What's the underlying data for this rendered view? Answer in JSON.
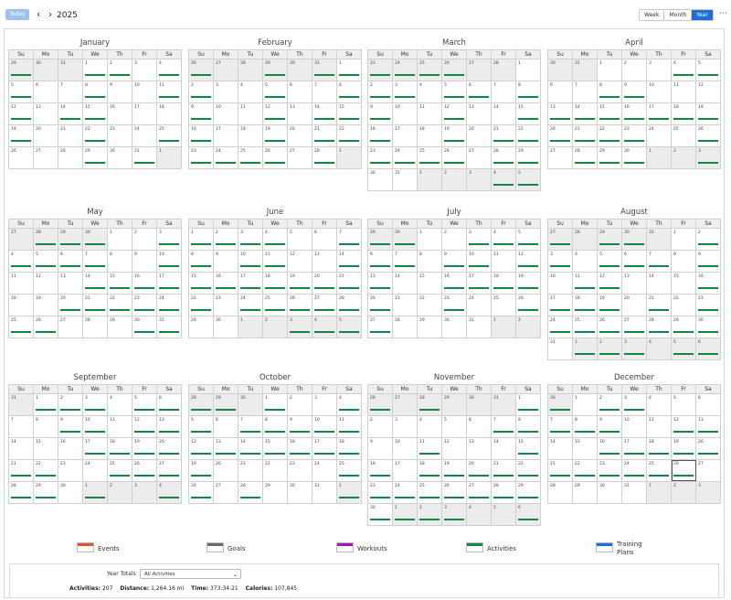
{
  "toolbar": {
    "today_label": "Today",
    "prev_icon": "chevron-left-icon",
    "next_icon": "chevron-right-icon",
    "year": "2025",
    "views": [
      "Week",
      "Month",
      "Year"
    ],
    "active_view": "Year",
    "more_icon": "ellipsis-icon"
  },
  "weekdays": [
    "Su",
    "Mo",
    "Tu",
    "We",
    "Th",
    "Fr",
    "Sa"
  ],
  "year": 2025,
  "today": {
    "month": 12,
    "day": 26
  },
  "activity_color": "#138645",
  "months": [
    {
      "name": "January",
      "activities": [
        "p:29",
        "1",
        "2",
        "4",
        "5",
        "8",
        "11",
        "12",
        "14",
        "15",
        "19",
        "22",
        "25",
        "29",
        "31"
      ]
    },
    {
      "name": "February",
      "activities": [
        "p:26",
        "p:29",
        "p:31",
        "1",
        "2",
        "5",
        "8",
        "9",
        "12",
        "14",
        "15",
        "16",
        "19",
        "21",
        "22",
        "23",
        "24",
        "25",
        "26",
        "28"
      ]
    },
    {
      "name": "March",
      "activities": [
        "p:23",
        "p:24",
        "p:25",
        "p:26",
        "2",
        "3",
        "5",
        "6",
        "8",
        "9",
        "12",
        "15",
        "16",
        "19",
        "21",
        "22",
        "23",
        "24",
        "25",
        "26",
        "28",
        "29",
        "n:4",
        "n:5"
      ]
    },
    {
      "name": "April",
      "activities": [
        "4",
        "5",
        "8",
        "9",
        "13",
        "14",
        "15",
        "16",
        "17",
        "18",
        "19",
        "20",
        "21",
        "22",
        "23",
        "26",
        "28",
        "29",
        "30",
        "n:3"
      ]
    },
    {
      "name": "May",
      "activities": [
        "p:28",
        "p:29",
        "p:30",
        "3",
        "4",
        "5",
        "6",
        "7",
        "10",
        "14",
        "15",
        "16",
        "17",
        "20",
        "21",
        "22",
        "23",
        "24",
        "25",
        "26",
        "30",
        "31"
      ]
    },
    {
      "name": "June",
      "activities": [
        "1",
        "2",
        "3",
        "4",
        "7",
        "8",
        "10",
        "11",
        "14",
        "15",
        "16",
        "17",
        "18",
        "19",
        "20",
        "21",
        "22",
        "24",
        "25",
        "26",
        "27",
        "28",
        "n:3",
        "n:4",
        "n:5"
      ]
    },
    {
      "name": "July",
      "activities": [
        "p:29",
        "p:30",
        "3",
        "4",
        "5",
        "6",
        "7",
        "9",
        "10",
        "12",
        "13",
        "16",
        "17",
        "18",
        "19",
        "20",
        "23",
        "26",
        "27"
      ]
    },
    {
      "name": "August",
      "activities": [
        "p:27",
        "p:29",
        "p:30",
        "2",
        "3",
        "5",
        "6",
        "7",
        "9",
        "11",
        "12",
        "16",
        "17",
        "18",
        "19",
        "21",
        "23",
        "24",
        "25",
        "26",
        "27",
        "28",
        "29",
        "30",
        "n:1",
        "n:2",
        "n:3",
        "n:5",
        "n:6"
      ]
    },
    {
      "name": "September",
      "activities": [
        "1",
        "2",
        "3",
        "5",
        "6",
        "9",
        "10",
        "12",
        "13",
        "17",
        "18",
        "19",
        "20",
        "21",
        "22",
        "25",
        "26",
        "27",
        "28",
        "29",
        "n:1",
        "n:4"
      ]
    },
    {
      "name": "October",
      "activities": [
        "p:28",
        "p:29",
        "1",
        "4",
        "5",
        "7",
        "8",
        "9",
        "10",
        "11",
        "12",
        "13",
        "14",
        "15",
        "16",
        "17",
        "18",
        "19",
        "25",
        "26",
        "28",
        "n:1"
      ]
    },
    {
      "name": "November",
      "activities": [
        "p:26",
        "p:28",
        "1",
        "7",
        "8",
        "11",
        "15",
        "16",
        "18",
        "19",
        "20",
        "21",
        "22",
        "23",
        "24",
        "25",
        "26",
        "27",
        "28",
        "29",
        "30",
        "n:1",
        "n:2",
        "n:3",
        "n:6"
      ]
    },
    {
      "name": "December",
      "activities": [
        "p:30",
        "2",
        "3",
        "7",
        "8",
        "9",
        "12",
        "13",
        "16",
        "17",
        "18",
        "19",
        "20",
        "21",
        "22",
        "23",
        "24",
        "25",
        "26"
      ]
    }
  ],
  "legend": [
    {
      "label": "Events",
      "color": "#e0552a"
    },
    {
      "label": "Goals",
      "color": "#6b6b6b"
    },
    {
      "label": "Workouts",
      "color": "#a21aa9"
    },
    {
      "label": "Activities",
      "color": "#138645"
    },
    {
      "label": "Training Plans",
      "color": "#1d6fd6"
    }
  ],
  "totals": {
    "label": "Year Totals",
    "filter": "All Activities",
    "activities_label": "Activities:",
    "activities_value": "207",
    "distance_label": "Distance:",
    "distance_value": "1,264.16 mi",
    "time_label": "Time:",
    "time_value": "373:34:21",
    "calories_label": "Calories:",
    "calories_value": "107,845"
  }
}
